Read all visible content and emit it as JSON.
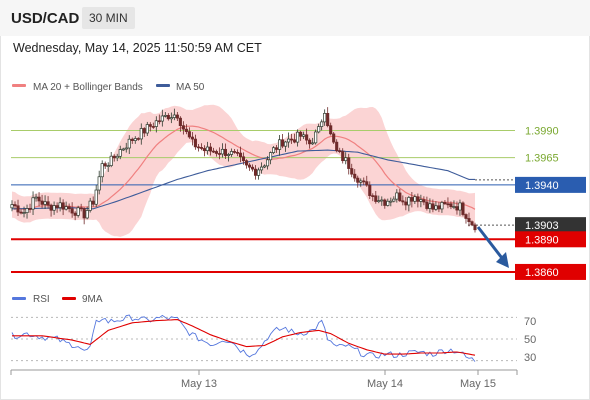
{
  "header": {
    "symbol": "USD/CAD",
    "timeframe": "30 MIN"
  },
  "timestamp": "Wednesday, May 14, 2025 11:50:59 AM CET",
  "colors": {
    "bull_candle": "#2e3a2e",
    "bear_candle": "#6e2a2a",
    "bollinger_fill": "#f9c6c6",
    "ma20": "#f08080",
    "ma50": "#3e5c9a",
    "resistance": "#a8cc6a",
    "pivot": "#2a5db0",
    "support": "#e00000",
    "last_price": "#333333",
    "rsi": "#5577dd",
    "rsi_ma": "#e00000",
    "arrow": "#2a5a9e"
  },
  "chart_data": [
    {
      "type": "candlestick",
      "title": "",
      "legend": [
        {
          "label": "MA 20 + Bollinger Bands",
          "color": "#f08080"
        },
        {
          "label": "MA 50",
          "color": "#3e5c9a"
        }
      ],
      "x_labels": [
        "May 13",
        "May 14",
        "May 15"
      ],
      "ylim": [
        1.3848,
        1.4018
      ],
      "levels": [
        {
          "value": 1.399,
          "label": "1.3990",
          "kind": "resistance"
        },
        {
          "value": 1.3965,
          "label": "1.3965",
          "kind": "resistance"
        },
        {
          "value": 1.394,
          "label": "1.3940",
          "kind": "pivot"
        },
        {
          "value": 1.3903,
          "label": "1.3903",
          "kind": "last_price"
        },
        {
          "value": 1.389,
          "label": "1.3890",
          "kind": "support"
        },
        {
          "value": 1.386,
          "label": "1.3860",
          "kind": "support"
        }
      ],
      "anchors": [
        [
          0,
          1.3922
        ],
        [
          4,
          1.3915
        ],
        [
          8,
          1.3928
        ],
        [
          12,
          1.392
        ],
        [
          16,
          1.3922
        ],
        [
          20,
          1.3917
        ],
        [
          24,
          1.3913
        ],
        [
          27,
          1.3925
        ],
        [
          30,
          1.3958
        ],
        [
          33,
          1.3962
        ],
        [
          36,
          1.3972
        ],
        [
          40,
          1.3982
        ],
        [
          44,
          1.399
        ],
        [
          48,
          1.3998
        ],
        [
          52,
          1.4004
        ],
        [
          55,
          1.4005
        ],
        [
          57,
          1.3992
        ],
        [
          60,
          1.3978
        ],
        [
          64,
          1.3972
        ],
        [
          68,
          1.3971
        ],
        [
          72,
          1.397
        ],
        [
          75,
          1.3965
        ],
        [
          78,
          1.3956
        ],
        [
          81,
          1.3953
        ],
        [
          84,
          1.396
        ],
        [
          87,
          1.3972
        ],
        [
          90,
          1.398
        ],
        [
          93,
          1.3982
        ],
        [
          96,
          1.3985
        ],
        [
          99,
          1.3978
        ],
        [
          102,
          1.399
        ],
        [
          104,
          1.401
        ],
        [
          106,
          1.3985
        ],
        [
          108,
          1.397
        ],
        [
          111,
          1.3962
        ],
        [
          114,
          1.395
        ],
        [
          117,
          1.394
        ],
        [
          120,
          1.393
        ],
        [
          124,
          1.3925
        ],
        [
          128,
          1.393
        ],
        [
          131,
          1.3926
        ],
        [
          134,
          1.393
        ],
        [
          137,
          1.3925
        ],
        [
          140,
          1.3918
        ],
        [
          143,
          1.392
        ],
        [
          146,
          1.3922
        ],
        [
          149,
          1.392
        ],
        [
          151,
          1.3913
        ],
        [
          153,
          1.3905
        ],
        [
          154,
          1.3903
        ]
      ],
      "ma50": [
        [
          0,
          1.3918
        ],
        [
          20,
          1.3919
        ],
        [
          27,
          1.3918
        ],
        [
          35,
          1.3925
        ],
        [
          45,
          1.3935
        ],
        [
          55,
          1.3945
        ],
        [
          65,
          1.3953
        ],
        [
          75,
          1.3959
        ],
        [
          85,
          1.3965
        ],
        [
          95,
          1.3971
        ],
        [
          105,
          1.3972
        ],
        [
          115,
          1.397
        ],
        [
          125,
          1.3963
        ],
        [
          135,
          1.3958
        ],
        [
          145,
          1.3953
        ],
        [
          152,
          1.3945
        ]
      ]
    },
    {
      "type": "line",
      "title": "",
      "legend": [
        {
          "label": "RSI",
          "color": "#5577dd"
        },
        {
          "label": "9MA",
          "color": "#e00000"
        }
      ],
      "ylim": [
        25,
        75
      ],
      "y_ticks": [
        "70",
        "50",
        "30"
      ],
      "rsi": [
        [
          0,
          53
        ],
        [
          5,
          55
        ],
        [
          10,
          52
        ],
        [
          15,
          50
        ],
        [
          18,
          46
        ],
        [
          22,
          44
        ],
        [
          24,
          38
        ],
        [
          26,
          42
        ],
        [
          28,
          65
        ],
        [
          30,
          70
        ],
        [
          32,
          66
        ],
        [
          36,
          68
        ],
        [
          40,
          70
        ],
        [
          45,
          67
        ],
        [
          50,
          70
        ],
        [
          55,
          68
        ],
        [
          58,
          58
        ],
        [
          61,
          52
        ],
        [
          64,
          48
        ],
        [
          67,
          45
        ],
        [
          70,
          50
        ],
        [
          73,
          48
        ],
        [
          76,
          40
        ],
        [
          79,
          36
        ],
        [
          82,
          40
        ],
        [
          85,
          52
        ],
        [
          88,
          58
        ],
        [
          91,
          60
        ],
        [
          94,
          55
        ],
        [
          97,
          56
        ],
        [
          100,
          58
        ],
        [
          103,
          66
        ],
        [
          105,
          50
        ],
        [
          108,
          42
        ],
        [
          111,
          44
        ],
        [
          114,
          40
        ],
        [
          117,
          36
        ],
        [
          120,
          34
        ],
        [
          124,
          36
        ],
        [
          128,
          35
        ],
        [
          132,
          37
        ],
        [
          136,
          38
        ],
        [
          140,
          36
        ],
        [
          143,
          39
        ],
        [
          146,
          40
        ],
        [
          149,
          38
        ],
        [
          151,
          33
        ],
        [
          154,
          30
        ]
      ],
      "rsi_ma": [
        [
          0,
          53
        ],
        [
          10,
          53
        ],
        [
          20,
          49
        ],
        [
          26,
          45
        ],
        [
          32,
          58
        ],
        [
          40,
          65
        ],
        [
          48,
          67
        ],
        [
          55,
          68
        ],
        [
          60,
          62
        ],
        [
          66,
          54
        ],
        [
          72,
          48
        ],
        [
          78,
          43
        ],
        [
          84,
          44
        ],
        [
          90,
          52
        ],
        [
          96,
          56
        ],
        [
          102,
          58
        ],
        [
          106,
          55
        ],
        [
          112,
          46
        ],
        [
          118,
          40
        ],
        [
          124,
          36
        ],
        [
          130,
          36
        ],
        [
          136,
          37
        ],
        [
          142,
          37
        ],
        [
          148,
          38
        ],
        [
          154,
          35
        ]
      ]
    }
  ]
}
